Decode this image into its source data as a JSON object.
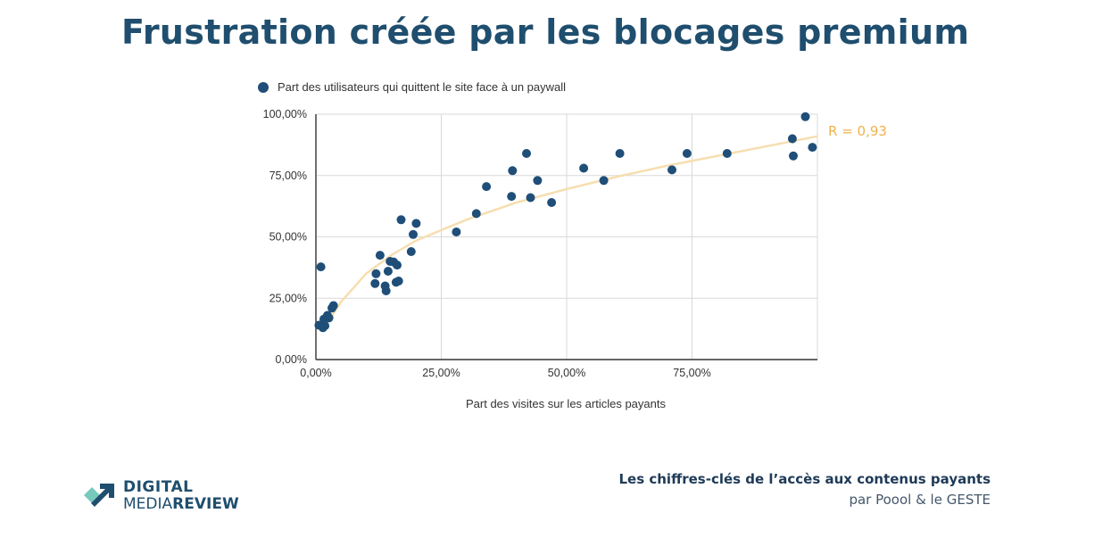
{
  "page": {
    "title": "Frustration créée par les blocages premium"
  },
  "chart_data": {
    "type": "scatter",
    "series": [
      {
        "name": "Part des utilisateurs qui quittent le site face à un paywall",
        "color": "#1f4e78",
        "x": [
          0.6,
          1.0,
          1.4,
          1.6,
          1.8,
          2.3,
          2.6,
          3.2,
          3.5,
          11.8,
          12.0,
          12.8,
          13.8,
          14.0,
          14.4,
          14.8,
          15.5,
          16.2,
          16.0,
          16.5,
          17.0,
          19.0,
          19.4,
          20.0,
          28.0,
          32.0,
          34.0,
          39.0,
          39.2,
          42.0,
          42.8,
          44.2,
          47.0,
          53.4,
          57.4,
          60.6,
          71.0,
          74.0,
          82.0,
          95.0,
          95.2,
          97.6,
          99.0
        ],
        "y": [
          14.0,
          37.8,
          13.0,
          16.5,
          13.8,
          18.0,
          17.0,
          21.0,
          22.0,
          31.0,
          35.0,
          42.5,
          30.0,
          28.0,
          36.0,
          40.0,
          39.8,
          38.5,
          31.5,
          32.0,
          57.0,
          44.0,
          51.0,
          55.5,
          52.0,
          59.5,
          70.5,
          66.5,
          77.0,
          84.0,
          66.0,
          73.0,
          64.0,
          78.0,
          73.0,
          84.0,
          77.3,
          84.0,
          84.0,
          90.0,
          83.0,
          99.0,
          86.5
        ]
      }
    ],
    "trendline": {
      "label": "R = 0,93",
      "color": "#f6deb0",
      "label_color": "#f0b24b",
      "x": [
        2,
        5,
        10,
        15,
        20,
        30,
        40,
        50,
        60,
        70,
        80,
        90,
        100
      ],
      "y": [
        14,
        23.5,
        35,
        42.5,
        48.5,
        57,
        64,
        69.5,
        74.5,
        79,
        83,
        87,
        91
      ]
    },
    "xlabel": "Part des visites sur les articles payants",
    "ylabel": "",
    "xlim": [
      0,
      100
    ],
    "ylim": [
      0,
      100
    ],
    "xticks": [
      0,
      25,
      50,
      75
    ],
    "xtick_labels": [
      "0,00%",
      "25,00%",
      "50,00%",
      "75,00%"
    ],
    "yticks": [
      0,
      25,
      50,
      75,
      100
    ],
    "ytick_labels": [
      "0,00%",
      "25,00%",
      "50,00%",
      "75,00%",
      "100,00%"
    ],
    "grid": true,
    "legend_position": "top-left"
  },
  "footer": {
    "title": "Les chiffres-clés de l’accès aux contenus payants",
    "subtitle": "par Poool & le GESTE"
  },
  "logo": {
    "line1": "DIGITAL",
    "line2a": "MEDIA",
    "line2b": "REVIEW",
    "colors": {
      "navy": "#1f4e6e",
      "teal": "#5fc0b2"
    }
  }
}
